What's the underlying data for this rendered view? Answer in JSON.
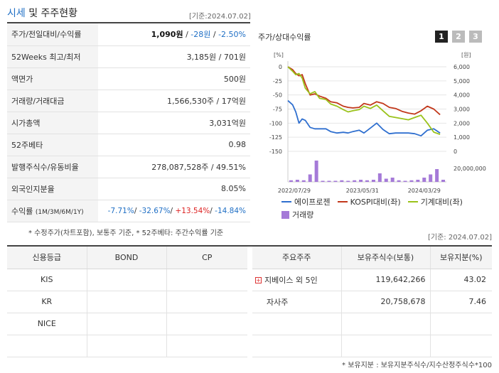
{
  "header": {
    "title_hl": "시세",
    "title_rest": " 및 주주현황",
    "asof": "[기준:2024.07.02]"
  },
  "quote_rows": [
    {
      "label": "주가/전일대비/수익률",
      "v1": "1,090원",
      "sep1": " / ",
      "v2": "-28원",
      "sep2": " / ",
      "v3": "-2.50%"
    },
    {
      "label": "52Weeks 최고/최저",
      "value": "3,185원 / 701원"
    },
    {
      "label": "액면가",
      "value": "500원"
    },
    {
      "label": "거래량/거래대금",
      "value": "1,566,530주 / 17억원"
    },
    {
      "label": "시가총액",
      "value": "3,031억원"
    },
    {
      "label": "52주베타",
      "value": "0.98"
    },
    {
      "label": "발행주식수/유동비율",
      "value": "278,087,528주 / 49.51%"
    },
    {
      "label": "외국인지분율",
      "value": "8.05%"
    }
  ],
  "return_row": {
    "label": "수익률",
    "label_small": "(1M/3M/6M/1Y)",
    "r1": "-7.71%",
    "r2": "-32.67%",
    "r3": "+13.54%",
    "r4": "-14.84%",
    "sep": "/ "
  },
  "note1": "* 수정주가(차트포함), 보통주 기준, * 52주베타: 주간수익률 기준",
  "chart_panel": {
    "title": "주가/상대수익률",
    "pages": [
      "1",
      "2",
      "3"
    ],
    "left_unit": "[%]",
    "right_unit": "[원]",
    "vol_label": "20,000,000",
    "legend": [
      "에이프로젠",
      "KOSPI대비(좌)",
      "기계대비(좌)",
      "거래량"
    ],
    "colors": {
      "stock": "#2f6fcf",
      "kospi": "#c2381b",
      "sector": "#9ac21a",
      "volume": "#a57ad8",
      "page_active": "#222222",
      "page_inactive": "#bbbbbb"
    }
  },
  "chart_data": {
    "type": "line",
    "x_ticks": [
      "2022/07/29",
      "2023/05/31",
      "2024/03/29"
    ],
    "left_axis": {
      "ticks": [
        0,
        -25,
        -50,
        -75,
        -100,
        -125,
        -150
      ],
      "ylim": [
        -150,
        0
      ]
    },
    "right_axis": {
      "ticks": [
        "6,000",
        "5,000",
        "4,000",
        "3,000",
        "2,000",
        "1,000",
        "0"
      ],
      "ylim": [
        0,
        6000
      ]
    },
    "x_range": [
      0,
      100
    ],
    "series": [
      {
        "name": "에이프로젠",
        "axis": "right",
        "x": [
          0,
          3,
          5,
          7,
          9,
          11,
          14,
          17,
          20,
          24,
          27,
          31,
          35,
          38,
          41,
          45,
          48,
          52,
          56,
          60,
          64,
          68,
          72,
          76,
          80,
          84,
          88,
          92,
          96
        ],
        "values": [
          3600,
          3300,
          2800,
          2000,
          2300,
          2200,
          1700,
          1600,
          1600,
          1600,
          1400,
          1300,
          1350,
          1300,
          1400,
          1500,
          1300,
          1650,
          2000,
          1550,
          1250,
          1300,
          1300,
          1300,
          1250,
          1100,
          1500,
          1600,
          1300
        ]
      },
      {
        "name": "KOSPI대비(좌)",
        "axis": "left",
        "x": [
          0,
          3,
          5,
          7,
          9,
          11,
          14,
          17,
          20,
          24,
          27,
          31,
          35,
          38,
          41,
          45,
          48,
          52,
          56,
          60,
          64,
          68,
          72,
          76,
          80,
          84,
          88,
          92,
          96
        ],
        "values": [
          0,
          -5,
          -12,
          -16,
          -14,
          -30,
          -50,
          -48,
          -52,
          -56,
          -62,
          -64,
          -70,
          -72,
          -73,
          -72,
          -65,
          -68,
          -62,
          -65,
          -72,
          -74,
          -79,
          -82,
          -84,
          -78,
          -70,
          -75,
          -85
        ]
      },
      {
        "name": "기계대비(좌)",
        "axis": "left",
        "x": [
          0,
          3,
          5,
          7,
          9,
          11,
          14,
          17,
          20,
          24,
          27,
          31,
          35,
          38,
          41,
          45,
          48,
          52,
          56,
          60,
          64,
          68,
          72,
          76,
          80,
          84,
          88,
          92,
          96
        ],
        "values": [
          0,
          -8,
          -14,
          -12,
          -20,
          -38,
          -48,
          -44,
          -56,
          -58,
          -66,
          -70,
          -76,
          -80,
          -78,
          -76,
          -70,
          -74,
          -68,
          -78,
          -88,
          -90,
          -92,
          -94,
          -90,
          -86,
          -100,
          -116,
          -120
        ]
      }
    ],
    "volume": {
      "ylim": [
        0,
        20000000
      ],
      "x": [
        2,
        6,
        10,
        14,
        18,
        22,
        26,
        30,
        34,
        38,
        42,
        46,
        50,
        54,
        58,
        62,
        66,
        70,
        74,
        78,
        82,
        86,
        90,
        94,
        98
      ],
      "values": [
        1500000,
        2000000,
        1500000,
        7000000,
        20000000,
        1000000,
        1000000,
        1000000,
        1500000,
        1000000,
        1500000,
        2000000,
        1500000,
        2000000,
        8000000,
        3000000,
        4000000,
        1500000,
        1000000,
        1500000,
        2000000,
        4000000,
        7000000,
        12000000,
        2000000
      ]
    }
  },
  "credit_table": {
    "headers": [
      "신용등급",
      "BOND",
      "CP"
    ],
    "rows": [
      [
        "KIS",
        "",
        ""
      ],
      [
        "KR",
        "",
        ""
      ],
      [
        "NICE",
        "",
        ""
      ],
      [
        "",
        "",
        ""
      ]
    ]
  },
  "holder_asof": "[기준: 2024.07.02]",
  "holders_table": {
    "headers": [
      "주요주주",
      "보유주식수(보통)",
      "보유지분(%)"
    ],
    "rows": [
      {
        "name": "지베이스 외 5인",
        "shares": "119,642,266",
        "pct": "43.02",
        "expand": "+"
      },
      {
        "name": "자사주",
        "shares": "20,758,678",
        "pct": "7.46"
      },
      {
        "name": "",
        "shares": "",
        "pct": ""
      },
      {
        "name": "",
        "shares": "",
        "pct": ""
      }
    ]
  },
  "note2": "* 보유지분 : 보유지분주식수/지수산정주식수*100"
}
